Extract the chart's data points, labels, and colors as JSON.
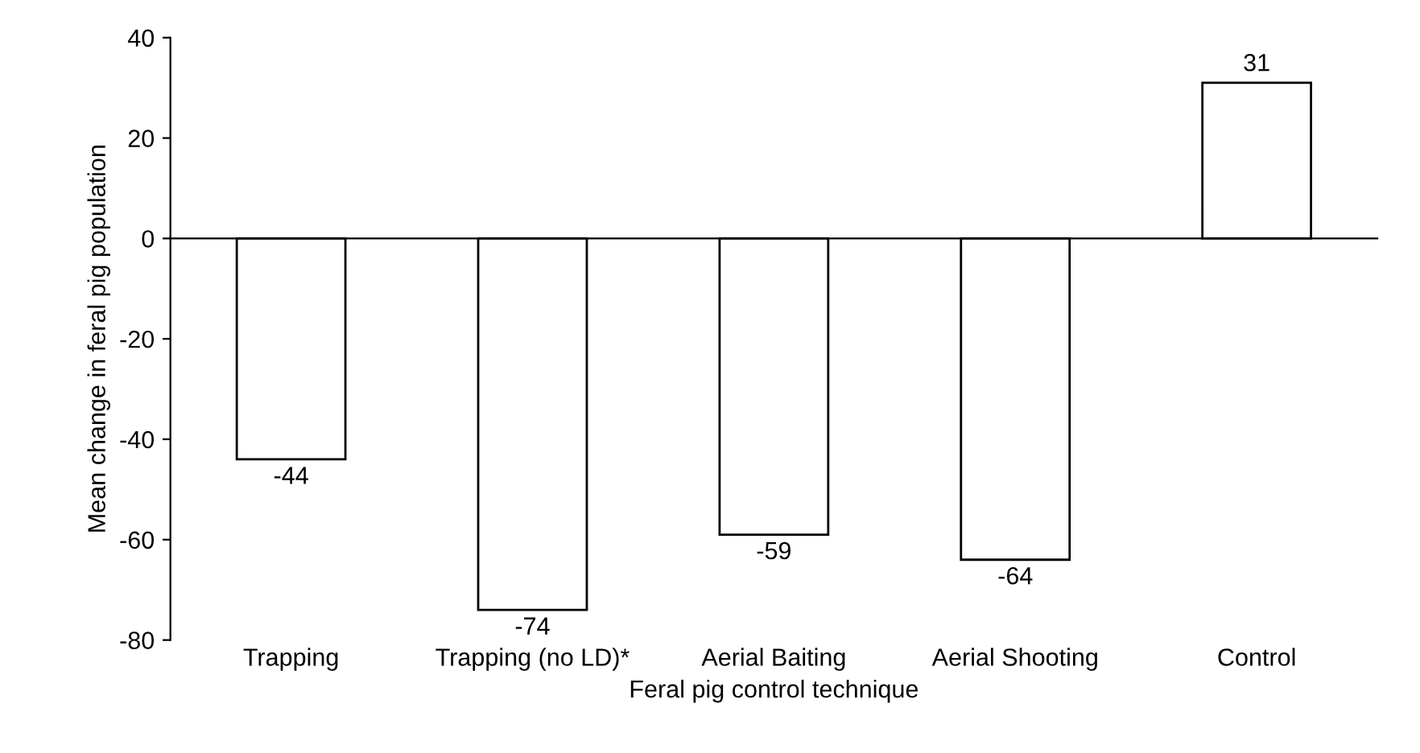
{
  "chart_data": {
    "type": "bar",
    "xlabel": "Feral pig control technique",
    "ylabel": "Mean change in feral pig population",
    "categories": [
      "Trapping",
      "Trapping (no LD)*",
      "Aerial Baiting",
      "Aerial Shooting",
      "Control"
    ],
    "values": [
      -44,
      -74,
      -59,
      -64,
      31
    ],
    "color": "#ffffff",
    "ylim": [
      -80,
      40
    ],
    "yticks": [
      -80,
      -60,
      -40,
      -20,
      0,
      20,
      40
    ],
    "data_labels": true
  }
}
